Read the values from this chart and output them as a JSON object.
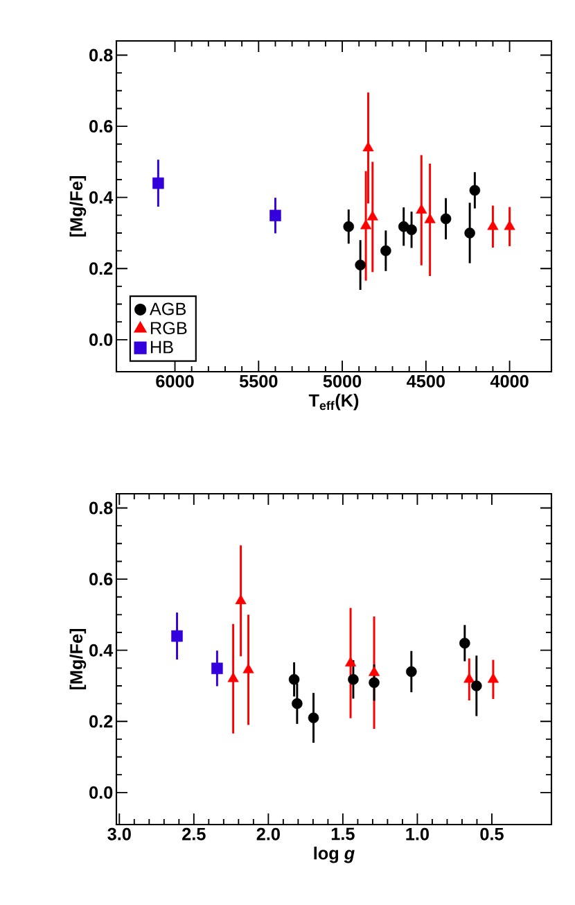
{
  "chart_data": [
    {
      "type": "scatter",
      "xlabel": "T$_{eff}$(K)",
      "ylabel": "[Mg/Fe]",
      "xlim": [
        6350,
        3750
      ],
      "ylim": [
        -0.09,
        0.84
      ],
      "xticks": [
        6000,
        5500,
        5000,
        4500,
        4000
      ],
      "yticks": [
        {
          "value": 0,
          "label": "0.0"
        },
        {
          "value": 0.2,
          "label": "0.2"
        },
        {
          "value": 0.4,
          "label": "0.4"
        },
        {
          "value": 0.6,
          "label": "0.6"
        },
        {
          "value": 0.8,
          "label": "0.8"
        }
      ],
      "legend": "bottom left",
      "grid": false,
      "series": [
        {
          "name": "AGB",
          "color": "#000000",
          "marker": "circle",
          "x": [
            4962,
            4892,
            4740,
            4633,
            4586,
            4381,
            4238,
            4208
          ],
          "values": [
            0.318,
            0.21,
            0.25,
            0.318,
            0.309,
            0.34,
            0.3,
            0.42
          ],
          "errors": [
            0.048,
            0.07,
            0.057,
            0.054,
            0.051,
            0.058,
            0.085,
            0.051
          ]
        },
        {
          "name": "RGB",
          "color": "#ff0000",
          "marker": "triangle",
          "x": [
            4859,
            4845,
            4819,
            4527,
            4476,
            4100,
            4000
          ],
          "values": [
            0.32,
            0.539,
            0.345,
            0.364,
            0.337,
            0.318,
            0.318
          ],
          "errors": [
            0.154,
            0.156,
            0.155,
            0.155,
            0.158,
            0.059,
            0.055
          ]
        },
        {
          "name": "HB",
          "color": "#3300dd",
          "marker": "square",
          "x": [
            6100,
            5400
          ],
          "values": [
            0.44,
            0.349
          ],
          "errors": [
            0.066,
            0.05
          ]
        }
      ]
    },
    {
      "type": "scatter",
      "xlabel": "log *g*",
      "ylabel": "[Mg/Fe]",
      "xlim": [
        3.02,
        0.1
      ],
      "ylim": [
        -0.09,
        0.84
      ],
      "xticks": [
        {
          "value": 3,
          "label": "3.0"
        },
        2.5,
        {
          "value": 2,
          "label": "2.0"
        },
        1.5,
        {
          "value": 1,
          "label": "1.0"
        },
        0.5
      ],
      "yticks": [
        {
          "value": 0,
          "label": "0.0"
        },
        {
          "value": 0.2,
          "label": "0.2"
        },
        {
          "value": 0.4,
          "label": "0.4"
        },
        {
          "value": 0.6,
          "label": "0.6"
        },
        {
          "value": 0.8,
          "label": "0.8"
        }
      ],
      "grid": false,
      "series": [
        {
          "color": "#000000",
          "marker": "circle",
          "x": [
            1.827,
            1.697,
            1.807,
            1.43,
            1.29,
            1.04,
            0.603,
            0.682
          ],
          "values": [
            0.318,
            0.21,
            0.25,
            0.318,
            0.309,
            0.34,
            0.3,
            0.42
          ],
          "errors": [
            0.048,
            0.07,
            0.057,
            0.054,
            0.051,
            0.058,
            0.085,
            0.051
          ]
        },
        {
          "color": "#ff0000",
          "marker": "triangle",
          "x": [
            2.236,
            2.185,
            2.134,
            1.448,
            1.29,
            0.652,
            0.491
          ],
          "values": [
            0.32,
            0.539,
            0.345,
            0.364,
            0.337,
            0.318,
            0.318
          ],
          "errors": [
            0.154,
            0.156,
            0.155,
            0.155,
            0.158,
            0.059,
            0.055
          ]
        },
        {
          "color": "#3300dd",
          "marker": "square",
          "x": [
            2.613,
            2.344
          ],
          "values": [
            0.44,
            0.349
          ],
          "errors": [
            0.066,
            0.05
          ]
        }
      ]
    }
  ]
}
